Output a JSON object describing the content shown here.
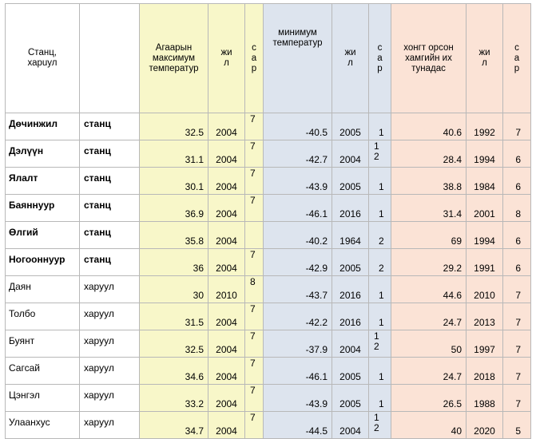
{
  "headers": {
    "station": "Станц,\nхарuул",
    "type": "",
    "max_temp": "Агаарын\nмаксимум\nтемператур",
    "max_year": "жи\nл",
    "max_month": "с\nа\nр",
    "min_temp": "минимум\nтемператур",
    "min_year": "жи\nл",
    "min_month": "с\nа\nр",
    "precip": "хонгт орсон\nхамгийн их\nтунадас",
    "precip_year": "жи\nл",
    "precip_month": "с\nа\nр"
  },
  "rows": [
    {
      "name": "Дөчинжил",
      "type": "станц",
      "bold": true,
      "max": "32.5",
      "max_year": "2004",
      "max_month": "7",
      "min": "-40.5",
      "min_year": "2005",
      "min_month": "1",
      "precip": "40.6",
      "precip_year": "1992",
      "precip_month": "7"
    },
    {
      "name": "Дэлүүн",
      "type": "станц",
      "bold": true,
      "max": "31.1",
      "max_year": "2004",
      "max_month": "7",
      "min": "-42.7",
      "min_year": "2004",
      "min_month": "1\n2",
      "precip": "28.4",
      "precip_year": "1994",
      "precip_month": "6"
    },
    {
      "name": "Ялалт",
      "type": "станц",
      "bold": true,
      "max": "30.1",
      "max_year": "2004",
      "max_month": "7",
      "min": "-43.9",
      "min_year": "2005",
      "min_month": "1",
      "precip": "38.8",
      "precip_year": "1984",
      "precip_month": "6"
    },
    {
      "name": "Баяннуур",
      "type": "станц",
      "bold": true,
      "max": "36.9",
      "max_year": "2004",
      "max_month": "7",
      "min": "-46.1",
      "min_year": "2016",
      "min_month": "1",
      "precip": "31.4",
      "precip_year": "2001",
      "precip_month": "8"
    },
    {
      "name": "Өлгий",
      "type": "станц",
      "bold": true,
      "max": "35.8",
      "max_year": "2004",
      "max_month": "",
      "min": "-40.2",
      "min_year": "1964",
      "min_month": "2",
      "precip": "69",
      "precip_year": "1994",
      "precip_month": "6"
    },
    {
      "name": "Ногооннуур",
      "type": "станц",
      "bold": true,
      "max": "36",
      "max_year": "2004",
      "max_month": "7",
      "min": "-42.9",
      "min_year": "2005",
      "min_month": "2",
      "precip": "29.2",
      "precip_year": "1991",
      "precip_month": "6"
    },
    {
      "name": "Даян",
      "type": "харуул",
      "bold": false,
      "max": "30",
      "max_year": "2010",
      "max_month": "8",
      "min": "-43.7",
      "min_year": "2016",
      "min_month": "1",
      "precip": "44.6",
      "precip_year": "2010",
      "precip_month": "7"
    },
    {
      "name": "Толбо",
      "type": "харуул",
      "bold": false,
      "max": "31.5",
      "max_year": "2004",
      "max_month": "7",
      "min": "-42.2",
      "min_year": "2016",
      "min_month": "1",
      "precip": "24.7",
      "precip_year": "2013",
      "precip_month": "7"
    },
    {
      "name": "Буянт",
      "type": "харуул",
      "bold": false,
      "max": "32.5",
      "max_year": "2004",
      "max_month": "7",
      "min": "-37.9",
      "min_year": "2004",
      "min_month": "1\n2",
      "precip": "50",
      "precip_year": "1997",
      "precip_month": "7"
    },
    {
      "name": "Сагсай",
      "type": "харуул",
      "bold": false,
      "max": "34.6",
      "max_year": "2004",
      "max_month": "7",
      "min": "-46.1",
      "min_year": "2005",
      "min_month": "1",
      "precip": "24.7",
      "precip_year": "2018",
      "precip_month": "7"
    },
    {
      "name": "Цэнгэл",
      "type": "харуул",
      "bold": false,
      "max": "33.2",
      "max_year": "2004",
      "max_month": "7",
      "min": "-43.9",
      "min_year": "2005",
      "min_month": "1",
      "precip": "26.5",
      "precip_year": "1988",
      "precip_month": "7"
    },
    {
      "name": "Улаанхус",
      "type": "харуул",
      "bold": false,
      "max": "34.7",
      "max_year": "2004",
      "max_month": "7",
      "min": "-44.5",
      "min_year": "2004",
      "min_month": "1\n2",
      "precip": "40",
      "precip_year": "2020",
      "precip_month": "5"
    }
  ]
}
